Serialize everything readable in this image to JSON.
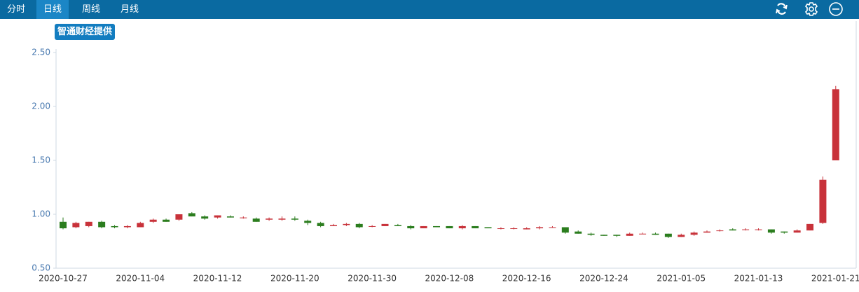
{
  "tabs": [
    "分时",
    "日线",
    "周线",
    "月线"
  ],
  "source_badge": "智通财经提供",
  "chart_data": {
    "type": "candlestick",
    "categories": [
      "2020-10-27",
      null,
      null,
      null,
      null,
      null,
      "2020-11-04",
      null,
      null,
      null,
      null,
      null,
      "2020-11-12",
      null,
      null,
      null,
      null,
      null,
      "2020-11-20",
      null,
      null,
      null,
      null,
      null,
      "2020-11-30",
      null,
      null,
      null,
      null,
      null,
      "2020-12-08",
      null,
      null,
      null,
      null,
      null,
      "2020-12-16",
      null,
      null,
      null,
      null,
      null,
      "2020-12-24",
      null,
      null,
      null,
      null,
      null,
      "2021-01-05",
      null,
      null,
      null,
      null,
      null,
      "2021-01-13",
      null,
      null,
      null,
      null,
      null,
      "2021-01-21"
    ],
    "open": [
      0.93,
      0.88,
      0.89,
      0.93,
      0.89,
      0.88,
      0.88,
      0.93,
      0.95,
      0.95,
      1.01,
      0.98,
      0.97,
      0.98,
      0.97,
      0.96,
      0.95,
      0.95,
      0.96,
      0.94,
      0.92,
      0.89,
      0.9,
      0.91,
      0.89,
      0.89,
      0.9,
      0.89,
      0.87,
      0.89,
      0.89,
      0.87,
      0.89,
      0.88,
      0.87,
      0.87,
      0.86,
      0.87,
      0.88,
      0.88,
      0.84,
      0.82,
      0.81,
      0.81,
      0.8,
      0.82,
      0.82,
      0.82,
      0.79,
      0.81,
      0.83,
      0.85,
      0.86,
      0.86,
      0.86,
      0.86,
      0.84,
      0.83,
      0.85,
      0.92,
      1.5
    ],
    "high": [
      0.97,
      0.93,
      0.93,
      0.94,
      0.9,
      0.9,
      0.93,
      0.96,
      0.96,
      1.0,
      1.02,
      0.99,
      0.99,
      0.99,
      0.98,
      0.97,
      0.97,
      0.98,
      0.98,
      0.95,
      0.93,
      0.91,
      0.92,
      0.92,
      0.9,
      0.91,
      0.91,
      0.9,
      0.89,
      0.89,
      0.89,
      0.9,
      0.89,
      0.88,
      0.88,
      0.88,
      0.88,
      0.89,
      0.89,
      0.88,
      0.85,
      0.83,
      0.81,
      0.81,
      0.83,
      0.83,
      0.83,
      0.82,
      0.82,
      0.84,
      0.85,
      0.86,
      0.87,
      0.87,
      0.87,
      0.86,
      0.84,
      0.86,
      0.91,
      1.35,
      2.19
    ],
    "low": [
      0.86,
      0.87,
      0.88,
      0.87,
      0.87,
      0.87,
      0.88,
      0.92,
      0.93,
      0.94,
      0.98,
      0.95,
      0.96,
      0.97,
      0.96,
      0.93,
      0.94,
      0.94,
      0.94,
      0.9,
      0.88,
      0.89,
      0.89,
      0.87,
      0.88,
      0.89,
      0.89,
      0.86,
      0.87,
      0.88,
      0.87,
      0.86,
      0.87,
      0.87,
      0.86,
      0.86,
      0.86,
      0.86,
      0.88,
      0.82,
      0.82,
      0.8,
      0.8,
      0.79,
      0.8,
      0.82,
      0.81,
      0.78,
      0.79,
      0.8,
      0.83,
      0.84,
      0.85,
      0.85,
      0.85,
      0.82,
      0.82,
      0.83,
      0.85,
      0.91,
      1.5
    ],
    "close": [
      0.87,
      0.92,
      0.93,
      0.88,
      0.88,
      0.89,
      0.92,
      0.95,
      0.93,
      1.0,
      0.98,
      0.96,
      0.99,
      0.97,
      0.97,
      0.93,
      0.96,
      0.96,
      0.95,
      0.92,
      0.89,
      0.9,
      0.91,
      0.88,
      0.89,
      0.91,
      0.89,
      0.87,
      0.89,
      0.88,
      0.87,
      0.89,
      0.87,
      0.87,
      0.87,
      0.87,
      0.87,
      0.88,
      0.88,
      0.83,
      0.82,
      0.81,
      0.8,
      0.8,
      0.82,
      0.82,
      0.81,
      0.79,
      0.81,
      0.83,
      0.84,
      0.85,
      0.85,
      0.86,
      0.86,
      0.83,
      0.83,
      0.85,
      0.91,
      1.32,
      2.16
    ],
    "up_color": "#c8323a",
    "down_color": "#2b7d1e",
    "ylim": [
      0.5,
      2.5
    ],
    "yticks": [
      {
        "value": 0.5,
        "label": "0.50"
      },
      {
        "value": 1.0,
        "label": "1.00"
      },
      {
        "value": 1.5,
        "label": "1.50"
      },
      {
        "value": 2.0,
        "label": "2.00"
      },
      {
        "value": 2.5,
        "label": "2.50"
      }
    ]
  }
}
